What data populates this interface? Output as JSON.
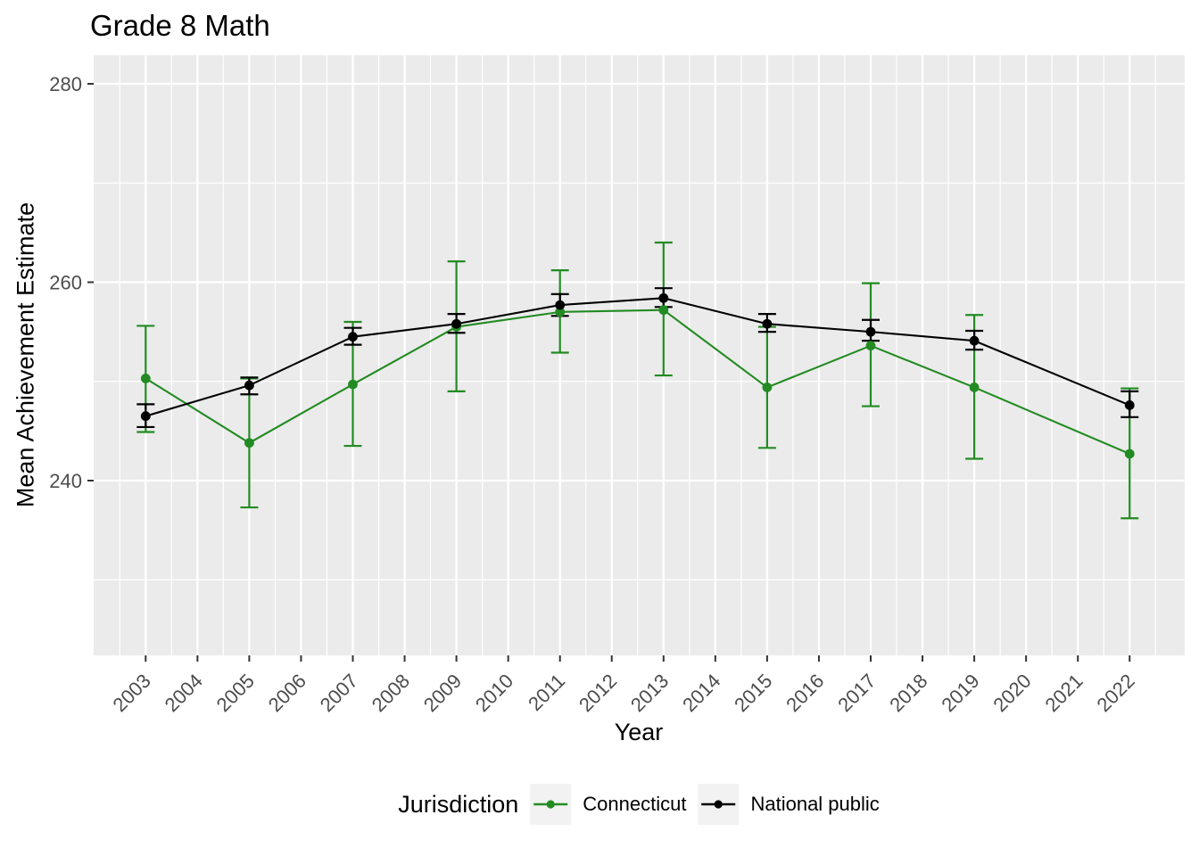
{
  "title": "Grade 8 Math",
  "axes": {
    "x_label": "Year",
    "y_label": "Mean Achievement Estimate",
    "x_tick_labels": [
      "2003",
      "2004",
      "2005",
      "2006",
      "2007",
      "2008",
      "2009",
      "2010",
      "2011",
      "2012",
      "2013",
      "2014",
      "2015",
      "2016",
      "2017",
      "2018",
      "2019",
      "2020",
      "2021",
      "2022"
    ],
    "y_tick_labels": [
      "240",
      "260",
      "280"
    ]
  },
  "legend": {
    "title": "Jurisdiction",
    "entries": [
      {
        "label": "Connecticut",
        "color": "#228B22"
      },
      {
        "label": "National public",
        "color": "#000000"
      }
    ]
  },
  "colors": {
    "panel_bg": "#EBEBEB",
    "grid": "#FFFFFF",
    "tick_mark": "#333333",
    "tick_text": "#4D4D4D",
    "legend_key_bg": "#F2F2F2",
    "connecticut": "#228B22",
    "national": "#000000"
  },
  "chart_data": {
    "type": "line",
    "title": "Grade 8 Math",
    "xlabel": "Year",
    "ylabel": "Mean Achievement Estimate",
    "grid": true,
    "legend_position": "bottom",
    "error_bars": true,
    "x_ticks": [
      2003,
      2004,
      2005,
      2006,
      2007,
      2008,
      2009,
      2010,
      2011,
      2012,
      2013,
      2014,
      2015,
      2016,
      2017,
      2018,
      2019,
      2020,
      2021,
      2022
    ],
    "y_ticks": [
      240,
      260,
      280
    ],
    "y_minor_ticks": [
      230,
      250,
      270
    ],
    "xlim": [
      2002.0,
      2023.1
    ],
    "ylim": [
      222.4,
      282.9
    ],
    "x": [
      2003,
      2005,
      2007,
      2009,
      2011,
      2013,
      2015,
      2017,
      2019,
      2022
    ],
    "series": [
      {
        "name": "Connecticut",
        "color": "#228B22",
        "values": [
          250.3,
          243.8,
          249.7,
          255.5,
          257.0,
          257.2,
          249.4,
          253.6,
          249.4,
          242.7
        ],
        "ci_low": [
          244.9,
          237.3,
          243.5,
          249.0,
          252.9,
          250.6,
          243.3,
          247.5,
          242.2,
          236.2
        ],
        "ci_high": [
          255.6,
          250.3,
          256.0,
          262.1,
          261.2,
          264.0,
          255.5,
          259.9,
          256.7,
          249.3
        ]
      },
      {
        "name": "National public",
        "color": "#000000",
        "values": [
          246.5,
          249.6,
          254.5,
          255.8,
          257.7,
          258.4,
          255.8,
          255.0,
          254.1,
          247.6
        ],
        "ci_low": [
          245.4,
          248.7,
          253.7,
          254.9,
          256.6,
          257.5,
          255.0,
          254.1,
          253.2,
          246.4
        ],
        "ci_high": [
          247.7,
          250.4,
          255.4,
          256.8,
          258.8,
          259.4,
          256.8,
          256.2,
          255.1,
          249.0
        ]
      }
    ]
  }
}
